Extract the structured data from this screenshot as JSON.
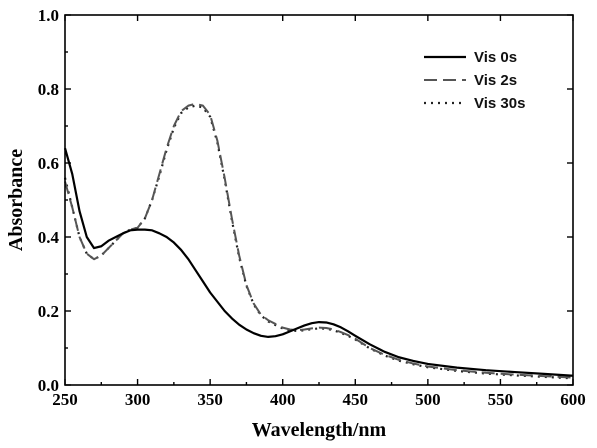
{
  "chart_data": {
    "type": "line",
    "xlabel": "Wavelength/nm",
    "ylabel": "Absorbance",
    "xlim": [
      250,
      600
    ],
    "ylim": [
      0.0,
      1.0
    ],
    "xticks": [
      250,
      300,
      350,
      400,
      450,
      500,
      550,
      600
    ],
    "yticks": [
      0.0,
      0.2,
      0.4,
      0.6,
      0.8,
      1.0
    ],
    "xtick_labels": [
      "250",
      "300",
      "350",
      "400",
      "450",
      "500",
      "550",
      "600"
    ],
    "ytick_labels": [
      "0.0",
      "0.2",
      "0.4",
      "0.6",
      "0.8",
      "1.0"
    ],
    "legend_position": "top-right",
    "grid": false,
    "series": [
      {
        "name": "Vis 0s",
        "style": "solid",
        "color": "#000000",
        "x": [
          250,
          255,
          260,
          265,
          270,
          275,
          280,
          285,
          290,
          295,
          300,
          305,
          310,
          315,
          320,
          325,
          330,
          335,
          340,
          345,
          350,
          355,
          360,
          365,
          370,
          375,
          380,
          385,
          390,
          395,
          400,
          405,
          410,
          415,
          420,
          425,
          430,
          435,
          440,
          445,
          450,
          460,
          470,
          480,
          490,
          500,
          520,
          540,
          560,
          580,
          600
        ],
        "y": [
          0.64,
          0.57,
          0.47,
          0.4,
          0.37,
          0.375,
          0.39,
          0.4,
          0.41,
          0.418,
          0.42,
          0.42,
          0.418,
          0.41,
          0.4,
          0.385,
          0.365,
          0.34,
          0.31,
          0.28,
          0.25,
          0.225,
          0.2,
          0.18,
          0.163,
          0.15,
          0.14,
          0.133,
          0.13,
          0.132,
          0.137,
          0.145,
          0.153,
          0.161,
          0.167,
          0.17,
          0.169,
          0.164,
          0.156,
          0.145,
          0.133,
          0.11,
          0.09,
          0.075,
          0.065,
          0.057,
          0.047,
          0.04,
          0.035,
          0.03,
          0.025
        ]
      },
      {
        "name": "Vis 2s",
        "style": "dashed",
        "color": "#555555",
        "x": [
          250,
          255,
          260,
          265,
          270,
          275,
          280,
          285,
          290,
          295,
          300,
          305,
          310,
          315,
          320,
          325,
          330,
          335,
          340,
          345,
          350,
          355,
          360,
          365,
          370,
          375,
          380,
          385,
          390,
          395,
          400,
          405,
          410,
          415,
          420,
          425,
          430,
          435,
          440,
          445,
          450,
          460,
          470,
          480,
          490,
          500,
          520,
          540,
          560,
          580,
          600
        ],
        "y": [
          0.55,
          0.48,
          0.4,
          0.355,
          0.34,
          0.35,
          0.37,
          0.39,
          0.41,
          0.42,
          0.425,
          0.45,
          0.5,
          0.57,
          0.64,
          0.7,
          0.74,
          0.755,
          0.76,
          0.755,
          0.73,
          0.66,
          0.56,
          0.45,
          0.35,
          0.27,
          0.22,
          0.19,
          0.175,
          0.165,
          0.155,
          0.15,
          0.148,
          0.15,
          0.153,
          0.155,
          0.154,
          0.15,
          0.143,
          0.135,
          0.125,
          0.1,
          0.082,
          0.068,
          0.058,
          0.05,
          0.04,
          0.033,
          0.028,
          0.024,
          0.02
        ]
      },
      {
        "name": "Vis 30s",
        "style": "dotted",
        "color": "#222222",
        "x": [
          250,
          255,
          260,
          265,
          270,
          275,
          280,
          285,
          290,
          295,
          300,
          305,
          310,
          315,
          320,
          325,
          330,
          335,
          340,
          345,
          350,
          355,
          360,
          365,
          370,
          375,
          380,
          385,
          390,
          395,
          400,
          405,
          410,
          415,
          420,
          425,
          430,
          435,
          440,
          445,
          450,
          460,
          470,
          480,
          490,
          500,
          520,
          540,
          560,
          580,
          600
        ],
        "y": [
          0.56,
          0.48,
          0.4,
          0.355,
          0.34,
          0.35,
          0.37,
          0.39,
          0.41,
          0.42,
          0.425,
          0.45,
          0.5,
          0.565,
          0.635,
          0.695,
          0.735,
          0.75,
          0.755,
          0.75,
          0.725,
          0.655,
          0.555,
          0.445,
          0.345,
          0.268,
          0.218,
          0.188,
          0.172,
          0.162,
          0.153,
          0.148,
          0.146,
          0.148,
          0.151,
          0.153,
          0.152,
          0.148,
          0.141,
          0.133,
          0.123,
          0.099,
          0.08,
          0.066,
          0.056,
          0.048,
          0.038,
          0.031,
          0.026,
          0.022,
          0.018
        ]
      }
    ]
  }
}
